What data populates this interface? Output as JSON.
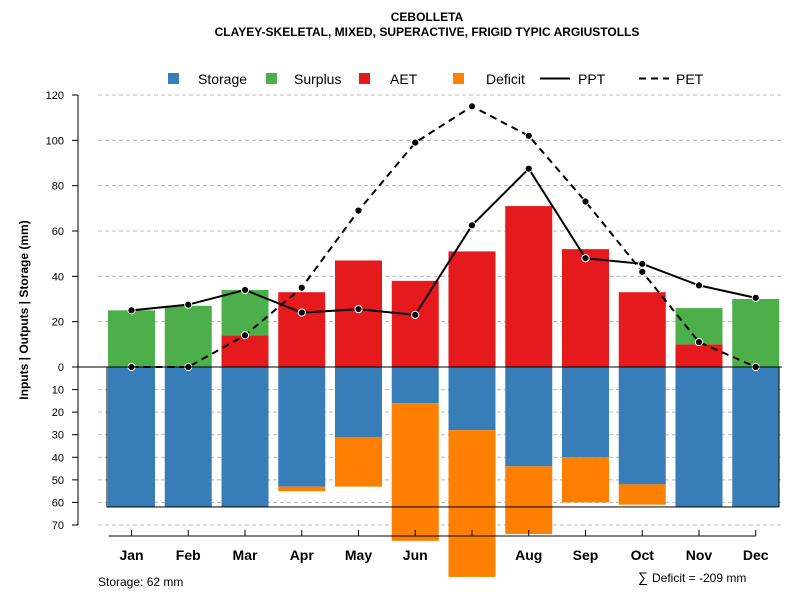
{
  "chart_data": {
    "type": "bar",
    "title": "CEBOLLETA",
    "subtitle": "CLAYEY-SKELETAL, MIXED, SUPERACTIVE, FRIGID TYPIC ARGIUSTOLLS",
    "ylabel": "Inputs | Outputs | Storage    (mm)",
    "categories": [
      "Jan",
      "Feb",
      "Mar",
      "Apr",
      "May",
      "Jun",
      "Jul",
      "Aug",
      "Sep",
      "Oct",
      "Nov",
      "Dec"
    ],
    "highlight_category": "Jul",
    "ylim_top": [
      0,
      120
    ],
    "ylim_bottom": [
      0,
      70
    ],
    "yticks_top": [
      "0",
      "20",
      "40",
      "60",
      "80",
      "100",
      "120"
    ],
    "yticks_bottom": [
      "10",
      "20",
      "30",
      "40",
      "50",
      "60",
      "70"
    ],
    "legend": [
      {
        "label": "Storage",
        "kind": "box",
        "color": "#377EB8"
      },
      {
        "label": "Surplus",
        "kind": "box",
        "color": "#4DAF4A"
      },
      {
        "label": "AET",
        "kind": "box",
        "color": "#E41A1C"
      },
      {
        "label": "Deficit",
        "kind": "box",
        "color": "#FF7F00"
      },
      {
        "label": "PPT",
        "kind": "solid",
        "color": "#000000"
      },
      {
        "label": "PET",
        "kind": "dashed",
        "color": "#000000"
      }
    ],
    "series": [
      {
        "name": "AET",
        "values": [
          0,
          0,
          14,
          33,
          47,
          38,
          51,
          71,
          52,
          33,
          10,
          0
        ]
      },
      {
        "name": "Surplus",
        "values": [
          25,
          27,
          20,
          0,
          0,
          0,
          0,
          0,
          0,
          0,
          16,
          30
        ]
      },
      {
        "name": "Storage",
        "values": [
          62,
          62,
          62,
          53,
          31,
          16,
          28,
          44,
          40,
          52,
          62,
          62
        ]
      },
      {
        "name": "Deficit",
        "values": [
          0,
          0,
          0,
          2,
          22,
          61,
          65,
          30,
          20,
          9,
          0,
          0
        ]
      },
      {
        "name": "PPT",
        "values": [
          25,
          27.5,
          34,
          24,
          25.5,
          23,
          62.5,
          87.5,
          48,
          45.5,
          36,
          30.5
        ]
      },
      {
        "name": "PET",
        "values": [
          0,
          0,
          14,
          35,
          69,
          99,
          115,
          102,
          73,
          42,
          11,
          0
        ]
      }
    ],
    "storage_capacity": 62,
    "footnote_left": "Storage: 62 mm",
    "footnote_right_symbol": "∑",
    "footnote_right": "Deficit = -209 mm"
  }
}
